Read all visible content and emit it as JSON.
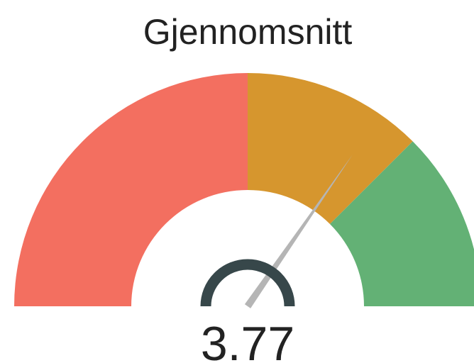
{
  "chart_data": {
    "type": "gauge",
    "title": "Gjennomsnitt",
    "value": 3.77,
    "range": [
      1,
      5
    ],
    "bands": [
      {
        "from": 1,
        "to": 3,
        "color": "#f36f60"
      },
      {
        "from": 3,
        "to": 4,
        "color": "#d6962e"
      },
      {
        "from": 4,
        "to": 5,
        "color": "#63b175"
      }
    ],
    "needle_color": "#b5b5b5",
    "hub_color": "#37474a"
  }
}
